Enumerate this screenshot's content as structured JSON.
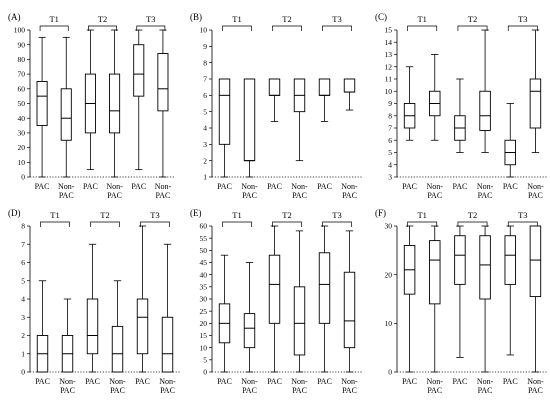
{
  "chart_data": [
    {
      "panel": "(A)",
      "type": "box",
      "ylim": [
        0,
        100
      ],
      "ticks": [
        0,
        10,
        20,
        30,
        40,
        50,
        60,
        70,
        80,
        90,
        100
      ],
      "groups": [
        "T1",
        "T2",
        "T3"
      ],
      "categories": [
        "PAC",
        "Non-PAC"
      ],
      "boxes": [
        {
          "group": "T1",
          "category": "PAC",
          "min": 0,
          "q1": 35,
          "median": 55,
          "q3": 65,
          "max": 95
        },
        {
          "group": "T1",
          "category": "Non-PAC",
          "min": 0,
          "q1": 25,
          "median": 40,
          "q3": 60,
          "max": 95
        },
        {
          "group": "T2",
          "category": "PAC",
          "min": 5,
          "q1": 30,
          "median": 50,
          "q3": 70,
          "max": 100
        },
        {
          "group": "T2",
          "category": "Non-PAC",
          "min": 0,
          "q1": 30,
          "median": 45,
          "q3": 70,
          "max": 100
        },
        {
          "group": "T3",
          "category": "PAC",
          "min": 5,
          "q1": 55,
          "median": 70,
          "q3": 90,
          "max": 100
        },
        {
          "group": "T3",
          "category": "Non-PAC",
          "min": 0,
          "q1": 45,
          "median": 60,
          "q3": 84,
          "max": 100
        }
      ]
    },
    {
      "panel": "(B)",
      "type": "box",
      "ylim": [
        1,
        10
      ],
      "ticks": [
        1,
        2,
        3,
        4,
        5,
        6,
        7,
        8,
        9,
        10
      ],
      "groups": [
        "T1",
        "T2",
        "T3"
      ],
      "categories": [
        "PAC",
        "Non-PAC"
      ],
      "boxes": [
        {
          "group": "T1",
          "category": "PAC",
          "min": 1,
          "q1": 3,
          "median": 6,
          "q3": 7,
          "max": 7
        },
        {
          "group": "T1",
          "category": "Non-PAC",
          "min": 1,
          "q1": 2,
          "median": 2,
          "q3": 7,
          "max": 7
        },
        {
          "group": "T2",
          "category": "PAC",
          "min": 4.4,
          "q1": 6,
          "median": 6,
          "q3": 7,
          "max": 7
        },
        {
          "group": "T2",
          "category": "Non-PAC",
          "min": 2,
          "q1": 5,
          "median": 6,
          "q3": 7,
          "max": 7
        },
        {
          "group": "T3",
          "category": "PAC",
          "min": 4.4,
          "q1": 6,
          "median": 6,
          "q3": 7,
          "max": 7
        },
        {
          "group": "T3",
          "category": "Non-PAC",
          "min": 5.1,
          "q1": 6.2,
          "median": 6.2,
          "q3": 7,
          "max": 7
        }
      ]
    },
    {
      "panel": "(C)",
      "type": "box",
      "ylim": [
        3,
        15
      ],
      "ticks": [
        3,
        4,
        5,
        6,
        7,
        8,
        9,
        10,
        11,
        12,
        13,
        14,
        15
      ],
      "groups": [
        "T1",
        "T2",
        "T3"
      ],
      "categories": [
        "PAC",
        "Non-PAC"
      ],
      "boxes": [
        {
          "group": "T1",
          "category": "PAC",
          "min": 6,
          "q1": 7,
          "median": 8,
          "q3": 9,
          "max": 12
        },
        {
          "group": "T1",
          "category": "Non-PAC",
          "min": 6,
          "q1": 8,
          "median": 9,
          "q3": 10,
          "max": 13
        },
        {
          "group": "T2",
          "category": "PAC",
          "min": 5,
          "q1": 6,
          "median": 7,
          "q3": 8,
          "max": 11
        },
        {
          "group": "T2",
          "category": "Non-PAC",
          "min": 5,
          "q1": 6.8,
          "median": 8,
          "q3": 10,
          "max": 15
        },
        {
          "group": "T3",
          "category": "PAC",
          "min": 3,
          "q1": 4,
          "median": 5,
          "q3": 6,
          "max": 9
        },
        {
          "group": "T3",
          "category": "Non-PAC",
          "min": 5,
          "q1": 7,
          "median": 10,
          "q3": 11,
          "max": 15
        }
      ]
    },
    {
      "panel": "(D)",
      "type": "box",
      "ylim": [
        0,
        8
      ],
      "ticks": [
        0,
        1,
        2,
        3,
        4,
        5,
        6,
        7,
        8
      ],
      "groups": [
        "T1",
        "T2",
        "T3"
      ],
      "categories": [
        "PAC",
        "Non-PAC"
      ],
      "boxes": [
        {
          "group": "T1",
          "category": "PAC",
          "min": 0,
          "q1": 0,
          "median": 1,
          "q3": 2,
          "max": 5
        },
        {
          "group": "T1",
          "category": "Non-PAC",
          "min": 0,
          "q1": 0,
          "median": 1,
          "q3": 2,
          "max": 4
        },
        {
          "group": "T2",
          "category": "PAC",
          "min": 0,
          "q1": 1,
          "median": 2,
          "q3": 4,
          "max": 7
        },
        {
          "group": "T2",
          "category": "Non-PAC",
          "min": 0,
          "q1": 0,
          "median": 1,
          "q3": 2.5,
          "max": 5
        },
        {
          "group": "T3",
          "category": "PAC",
          "min": 0,
          "q1": 1,
          "median": 3,
          "q3": 4,
          "max": 8
        },
        {
          "group": "T3",
          "category": "Non-PAC",
          "min": 0,
          "q1": 0,
          "median": 1,
          "q3": 3,
          "max": 7
        }
      ]
    },
    {
      "panel": "(E)",
      "type": "box",
      "ylim": [
        0,
        60
      ],
      "ticks": [
        0,
        5,
        10,
        15,
        20,
        25,
        30,
        35,
        40,
        45,
        50,
        55,
        60
      ],
      "groups": [
        "T1",
        "T2",
        "T3"
      ],
      "categories": [
        "PAC",
        "Non-PAC"
      ],
      "boxes": [
        {
          "group": "T1",
          "category": "PAC",
          "min": 0,
          "q1": 12,
          "median": 20,
          "q3": 28,
          "max": 48
        },
        {
          "group": "T1",
          "category": "Non-PAC",
          "min": 0,
          "q1": 10,
          "median": 18,
          "q3": 24,
          "max": 45
        },
        {
          "group": "T2",
          "category": "PAC",
          "min": 0,
          "q1": 20,
          "median": 36,
          "q3": 48,
          "max": 60
        },
        {
          "group": "T2",
          "category": "Non-PAC",
          "min": 0,
          "q1": 7,
          "median": 20,
          "q3": 35,
          "max": 58
        },
        {
          "group": "T3",
          "category": "PAC",
          "min": 0,
          "q1": 20,
          "median": 36,
          "q3": 49,
          "max": 60
        },
        {
          "group": "T3",
          "category": "Non-PAC",
          "min": 0,
          "q1": 10,
          "median": 21,
          "q3": 41,
          "max": 58
        }
      ]
    },
    {
      "panel": "(F)",
      "type": "box",
      "ylim": [
        0,
        30
      ],
      "ticks": [
        0,
        10,
        20,
        30
      ],
      "groups": [
        "T1",
        "T2",
        "T3"
      ],
      "categories": [
        "PAC",
        "Non-PAC"
      ],
      "boxes": [
        {
          "group": "T1",
          "category": "PAC",
          "min": 0,
          "q1": 16,
          "median": 21,
          "q3": 26,
          "max": 30
        },
        {
          "group": "T1",
          "category": "Non-PAC",
          "min": 0,
          "q1": 14,
          "median": 23,
          "q3": 27,
          "max": 30
        },
        {
          "group": "T2",
          "category": "PAC",
          "min": 3,
          "q1": 18,
          "median": 24,
          "q3": 28,
          "max": 30
        },
        {
          "group": "T2",
          "category": "Non-PAC",
          "min": 0,
          "q1": 15,
          "median": 22,
          "q3": 28,
          "max": 30
        },
        {
          "group": "T3",
          "category": "PAC",
          "min": 3.5,
          "q1": 18,
          "median": 24,
          "q3": 28,
          "max": 30
        },
        {
          "group": "T3",
          "category": "Non-PAC",
          "min": 0,
          "q1": 15.5,
          "median": 23,
          "q3": 30,
          "max": 30
        }
      ]
    }
  ]
}
